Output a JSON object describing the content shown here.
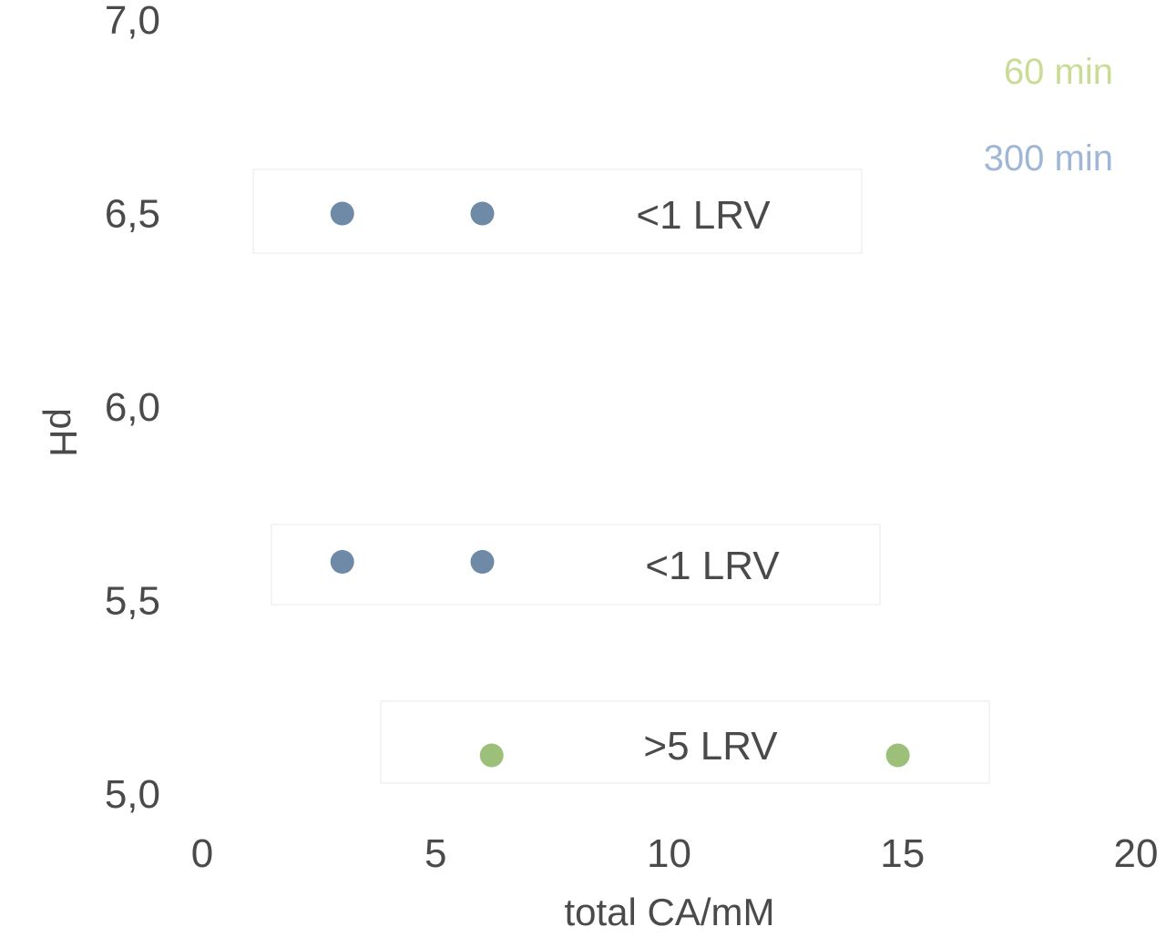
{
  "chart_data": {
    "type": "scatter",
    "xlabel": "total CA/mM",
    "ylabel": "pH",
    "xlim": [
      0,
      20
    ],
    "ylim": [
      5.0,
      7.0
    ],
    "x_ticks": [
      "0",
      "5",
      "10",
      "15",
      "20"
    ],
    "y_ticks": [
      "5,0",
      "5,5",
      "6,0",
      "6,5",
      "7,0"
    ],
    "grid": false,
    "legend_position": "top-right",
    "series": [
      {
        "name": "60 min",
        "color": "#c8dc96",
        "points": [
          {
            "x": 6.2,
            "y": 5.1
          },
          {
            "x": 14.9,
            "y": 5.1
          }
        ]
      },
      {
        "name": "300 min",
        "color": "#9fb7d6",
        "points": [
          {
            "x": 3.0,
            "y": 6.5
          },
          {
            "x": 6.0,
            "y": 6.5
          },
          {
            "x": 3.0,
            "y": 5.6
          },
          {
            "x": 6.0,
            "y": 5.6
          }
        ]
      }
    ],
    "annotations": [
      {
        "text": "<1 LRV",
        "y": 6.5
      },
      {
        "text": "<1 LRV",
        "y": 5.6
      },
      {
        "text": ">5 LRV",
        "y": 5.1
      }
    ]
  }
}
